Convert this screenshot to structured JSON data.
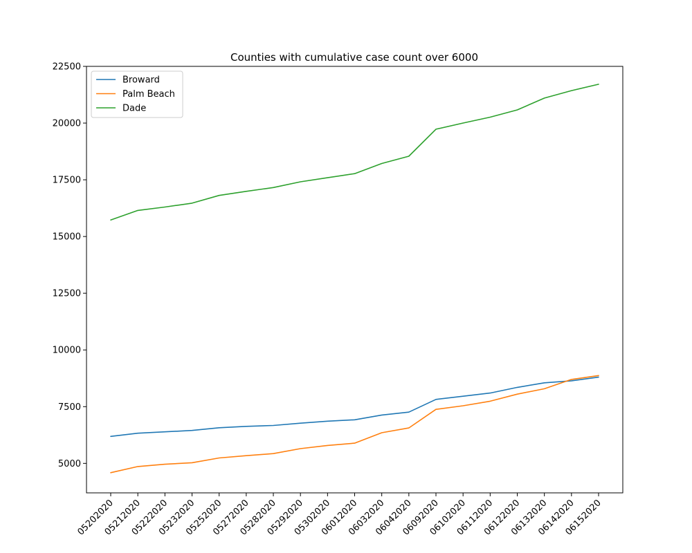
{
  "chart_data": {
    "type": "line",
    "title": "Counties with cumulative case count over 6000",
    "xlabel": "",
    "ylabel": "",
    "categories": [
      "05202020",
      "05212020",
      "05222020",
      "05232020",
      "05252020",
      "05272020",
      "05282020",
      "05292020",
      "05302020",
      "06012020",
      "06032020",
      "06042020",
      "06092020",
      "06102020",
      "06112020",
      "06122020",
      "06132020",
      "06142020",
      "06152020"
    ],
    "ylim": [
      3700,
      22500
    ],
    "yticks": [
      5000,
      7500,
      10000,
      12500,
      15000,
      17500,
      20000,
      22500
    ],
    "legend_position": "upper-left",
    "grid": false,
    "series": [
      {
        "name": "Broward",
        "color": "#1f77b4",
        "values": [
          6190,
          6330,
          6390,
          6450,
          6570,
          6630,
          6670,
          6770,
          6860,
          6920,
          7130,
          7260,
          7820,
          7960,
          8100,
          8350,
          8550,
          8640,
          8800
        ]
      },
      {
        "name": "Palm Beach",
        "color": "#ff7f0e",
        "values": [
          4590,
          4860,
          4960,
          5030,
          5240,
          5340,
          5430,
          5650,
          5790,
          5890,
          6350,
          6560,
          7380,
          7540,
          7740,
          8050,
          8290,
          8700,
          8870
        ]
      },
      {
        "name": "Dade",
        "color": "#2ca02c",
        "values": [
          15730,
          16150,
          16300,
          16470,
          16810,
          16990,
          17160,
          17410,
          17590,
          17770,
          18220,
          18540,
          19730,
          20000,
          20260,
          20580,
          21100,
          21430,
          21710
        ]
      }
    ]
  }
}
